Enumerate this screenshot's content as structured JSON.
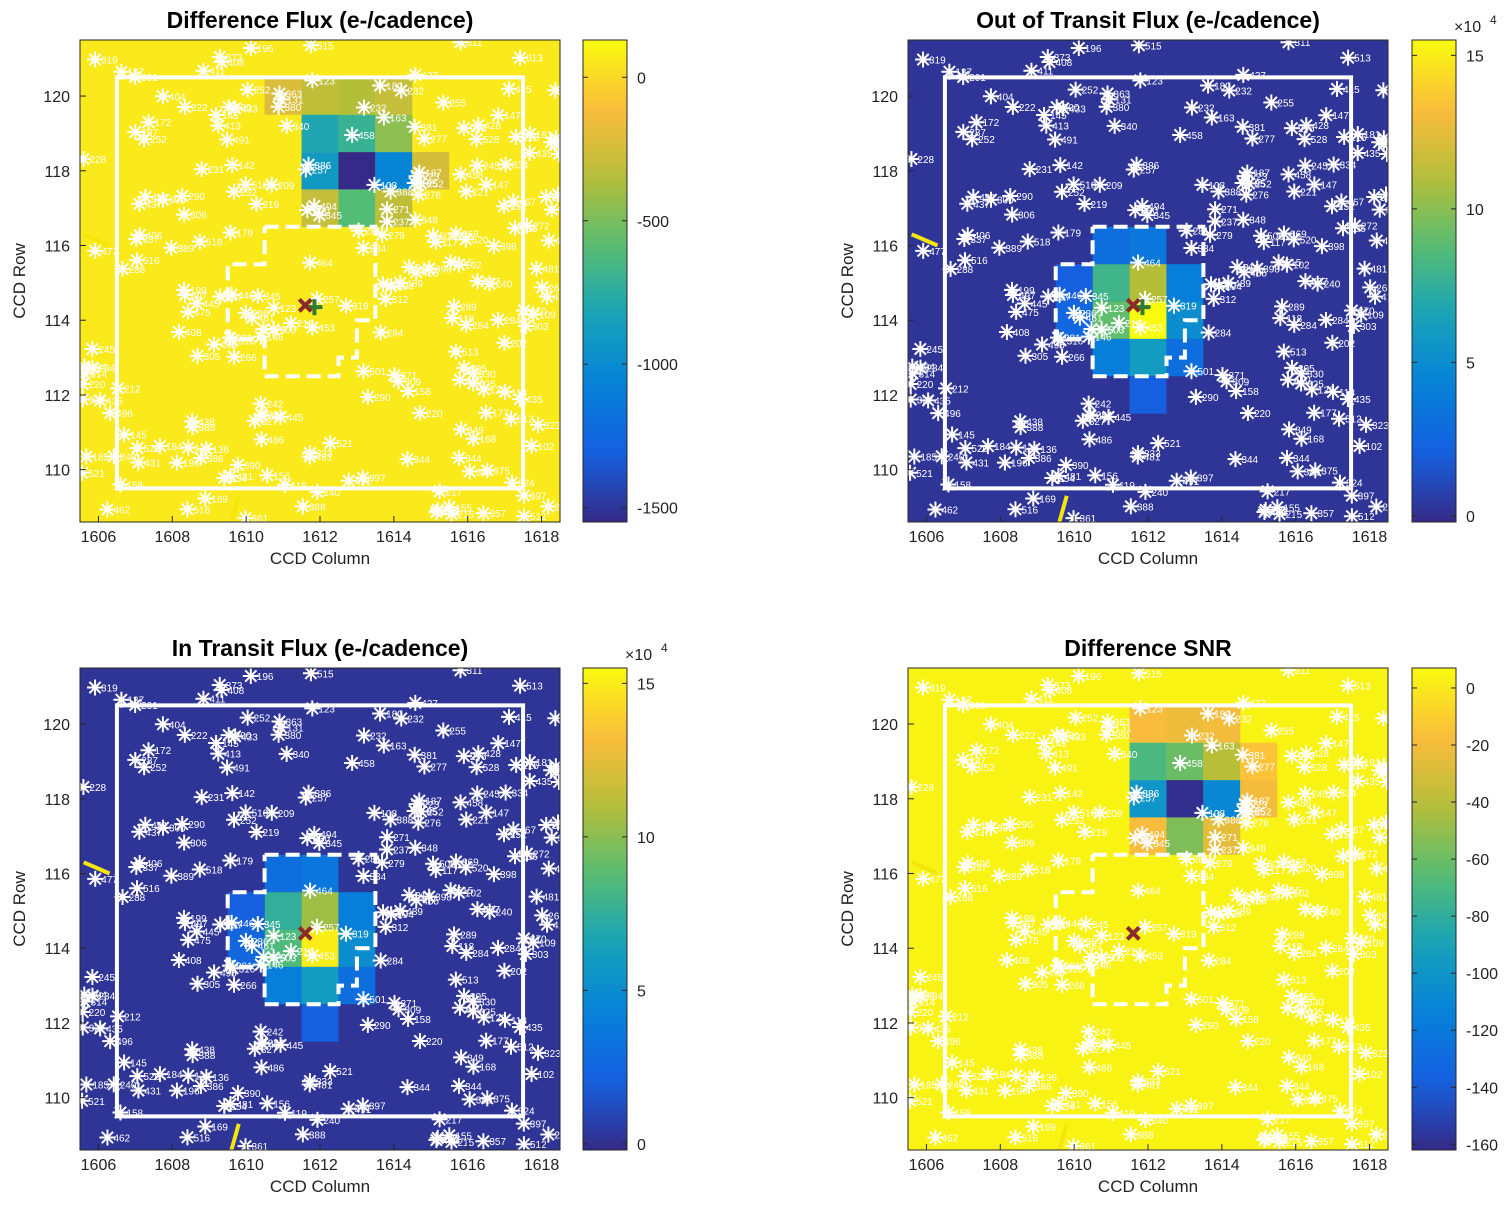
{
  "chart_data": [
    {
      "type": "heatmap",
      "title": "Difference Flux (e-/cadence)",
      "xlabel": "CCD Column",
      "ylabel": "CCD Row",
      "xlim": [
        1605.5,
        1618.5
      ],
      "ylim": [
        108.6,
        121.5
      ],
      "xticks": [
        1606,
        1608,
        1610,
        1612,
        1614,
        1616,
        1618
      ],
      "yticks": [
        110,
        112,
        114,
        116,
        118,
        120
      ],
      "colorbar": {
        "min": -1550,
        "max": 130,
        "ticks": [
          0,
          -500,
          -1000,
          -1500
        ],
        "exponent_label": ""
      },
      "background_value": 60,
      "pixels": [
        {
          "col": 1611,
          "row": 120,
          "value": -220
        },
        {
          "col": 1612,
          "row": 120,
          "value": -320
        },
        {
          "col": 1613,
          "row": 120,
          "value": -350
        },
        {
          "col": 1614,
          "row": 120,
          "value": -300
        },
        {
          "col": 1612,
          "row": 119,
          "value": -800
        },
        {
          "col": 1613,
          "row": 119,
          "value": -700
        },
        {
          "col": 1614,
          "row": 119,
          "value": -450
        },
        {
          "col": 1612,
          "row": 118,
          "value": -900
        },
        {
          "col": 1613,
          "row": 118,
          "value": -1550
        },
        {
          "col": 1614,
          "row": 118,
          "value": -1050
        },
        {
          "col": 1615,
          "row": 118,
          "value": -250
        },
        {
          "col": 1612,
          "row": 117,
          "value": -300
        },
        {
          "col": 1613,
          "row": 117,
          "value": -600
        },
        {
          "col": 1614,
          "row": 117,
          "value": -320
        }
      ],
      "centroid_x": [
        1611.6,
        114.4
      ],
      "centroid_plus": [
        1611.85,
        114.35
      ]
    },
    {
      "type": "heatmap",
      "title": "Out of Transit Flux (e-/cadence)",
      "xlabel": "CCD Column",
      "ylabel": "CCD Row",
      "xlim": [
        1605.5,
        1618.5
      ],
      "ylim": [
        108.6,
        121.5
      ],
      "xticks": [
        1606,
        1608,
        1610,
        1612,
        1614,
        1616,
        1618
      ],
      "yticks": [
        110,
        112,
        114,
        116,
        118,
        120
      ],
      "colorbar": {
        "min": -0.2,
        "max": 15.5,
        "ticks": [
          15,
          10,
          5,
          0
        ],
        "exponent_label": "×10^4"
      },
      "background_value": 0.2,
      "pixels": [
        {
          "col": 1611,
          "row": 116,
          "value": 3
        },
        {
          "col": 1612,
          "row": 116,
          "value": 3.5
        },
        {
          "col": 1611,
          "row": 115,
          "value": 8
        },
        {
          "col": 1612,
          "row": 115,
          "value": 11
        },
        {
          "col": 1613,
          "row": 115,
          "value": 4
        },
        {
          "col": 1611,
          "row": 114,
          "value": 9
        },
        {
          "col": 1612,
          "row": 114,
          "value": 15.5
        },
        {
          "col": 1613,
          "row": 114,
          "value": 5
        },
        {
          "col": 1611,
          "row": 113,
          "value": 4
        },
        {
          "col": 1612,
          "row": 113,
          "value": 6
        },
        {
          "col": 1613,
          "row": 113,
          "value": 3
        },
        {
          "col": 1610,
          "row": 114,
          "value": 2.5
        },
        {
          "col": 1610,
          "row": 115,
          "value": 2
        },
        {
          "col": 1612,
          "row": 112,
          "value": 2
        }
      ],
      "centroid_x": [
        1611.6,
        114.4
      ],
      "centroid_plus": [
        1611.85,
        114.35
      ]
    },
    {
      "type": "heatmap",
      "title": "In Transit Flux (e-/cadence)",
      "xlabel": "CCD Column",
      "ylabel": "CCD Row",
      "xlim": [
        1605.5,
        1618.5
      ],
      "ylim": [
        108.6,
        121.5
      ],
      "xticks": [
        1606,
        1608,
        1610,
        1612,
        1614,
        1616,
        1618
      ],
      "yticks": [
        110,
        112,
        114,
        116,
        118,
        120
      ],
      "colorbar": {
        "min": -0.2,
        "max": 15.5,
        "ticks": [
          15,
          10,
          5,
          0
        ],
        "exponent_label": "×10^4"
      },
      "background_value": 0.2,
      "pixels": [
        {
          "col": 1611,
          "row": 116,
          "value": 3
        },
        {
          "col": 1612,
          "row": 116,
          "value": 3.5
        },
        {
          "col": 1611,
          "row": 115,
          "value": 7.5
        },
        {
          "col": 1612,
          "row": 115,
          "value": 10.5
        },
        {
          "col": 1613,
          "row": 115,
          "value": 4
        },
        {
          "col": 1611,
          "row": 114,
          "value": 8.5
        },
        {
          "col": 1612,
          "row": 114,
          "value": 15
        },
        {
          "col": 1613,
          "row": 114,
          "value": 5
        },
        {
          "col": 1611,
          "row": 113,
          "value": 4
        },
        {
          "col": 1612,
          "row": 113,
          "value": 6
        },
        {
          "col": 1613,
          "row": 113,
          "value": 3
        },
        {
          "col": 1610,
          "row": 114,
          "value": 2.5
        },
        {
          "col": 1610,
          "row": 115,
          "value": 2
        },
        {
          "col": 1612,
          "row": 112,
          "value": 2
        }
      ],
      "centroid_x": [
        1611.6,
        114.4
      ]
    },
    {
      "type": "heatmap",
      "title": "Difference SNR",
      "xlabel": "CCD Column",
      "ylabel": "CCD Row",
      "xlim": [
        1605.5,
        1618.5
      ],
      "ylim": [
        108.6,
        121.5
      ],
      "xticks": [
        1606,
        1608,
        1610,
        1612,
        1614,
        1616,
        1618
      ],
      "yticks": [
        110,
        112,
        114,
        116,
        118,
        120
      ],
      "colorbar": {
        "min": -162,
        "max": 7,
        "ticks": [
          0,
          -20,
          -40,
          -60,
          -80,
          -100,
          -120,
          -140,
          -160
        ],
        "exponent_label": ""
      },
      "background_value": 4,
      "pixels": [
        {
          "col": 1612,
          "row": 120,
          "value": -18
        },
        {
          "col": 1613,
          "row": 120,
          "value": -22
        },
        {
          "col": 1614,
          "row": 120,
          "value": -20
        },
        {
          "col": 1612,
          "row": 119,
          "value": -70
        },
        {
          "col": 1613,
          "row": 119,
          "value": -60
        },
        {
          "col": 1614,
          "row": 119,
          "value": -40
        },
        {
          "col": 1615,
          "row": 119,
          "value": -15
        },
        {
          "col": 1612,
          "row": 118,
          "value": -100
        },
        {
          "col": 1613,
          "row": 118,
          "value": -160
        },
        {
          "col": 1614,
          "row": 118,
          "value": -110
        },
        {
          "col": 1615,
          "row": 118,
          "value": -20
        },
        {
          "col": 1612,
          "row": 117,
          "value": -18
        },
        {
          "col": 1613,
          "row": 117,
          "value": -55
        },
        {
          "col": 1614,
          "row": 117,
          "value": -25
        }
      ],
      "centroid_x": [
        1611.6,
        114.4
      ]
    }
  ]
}
